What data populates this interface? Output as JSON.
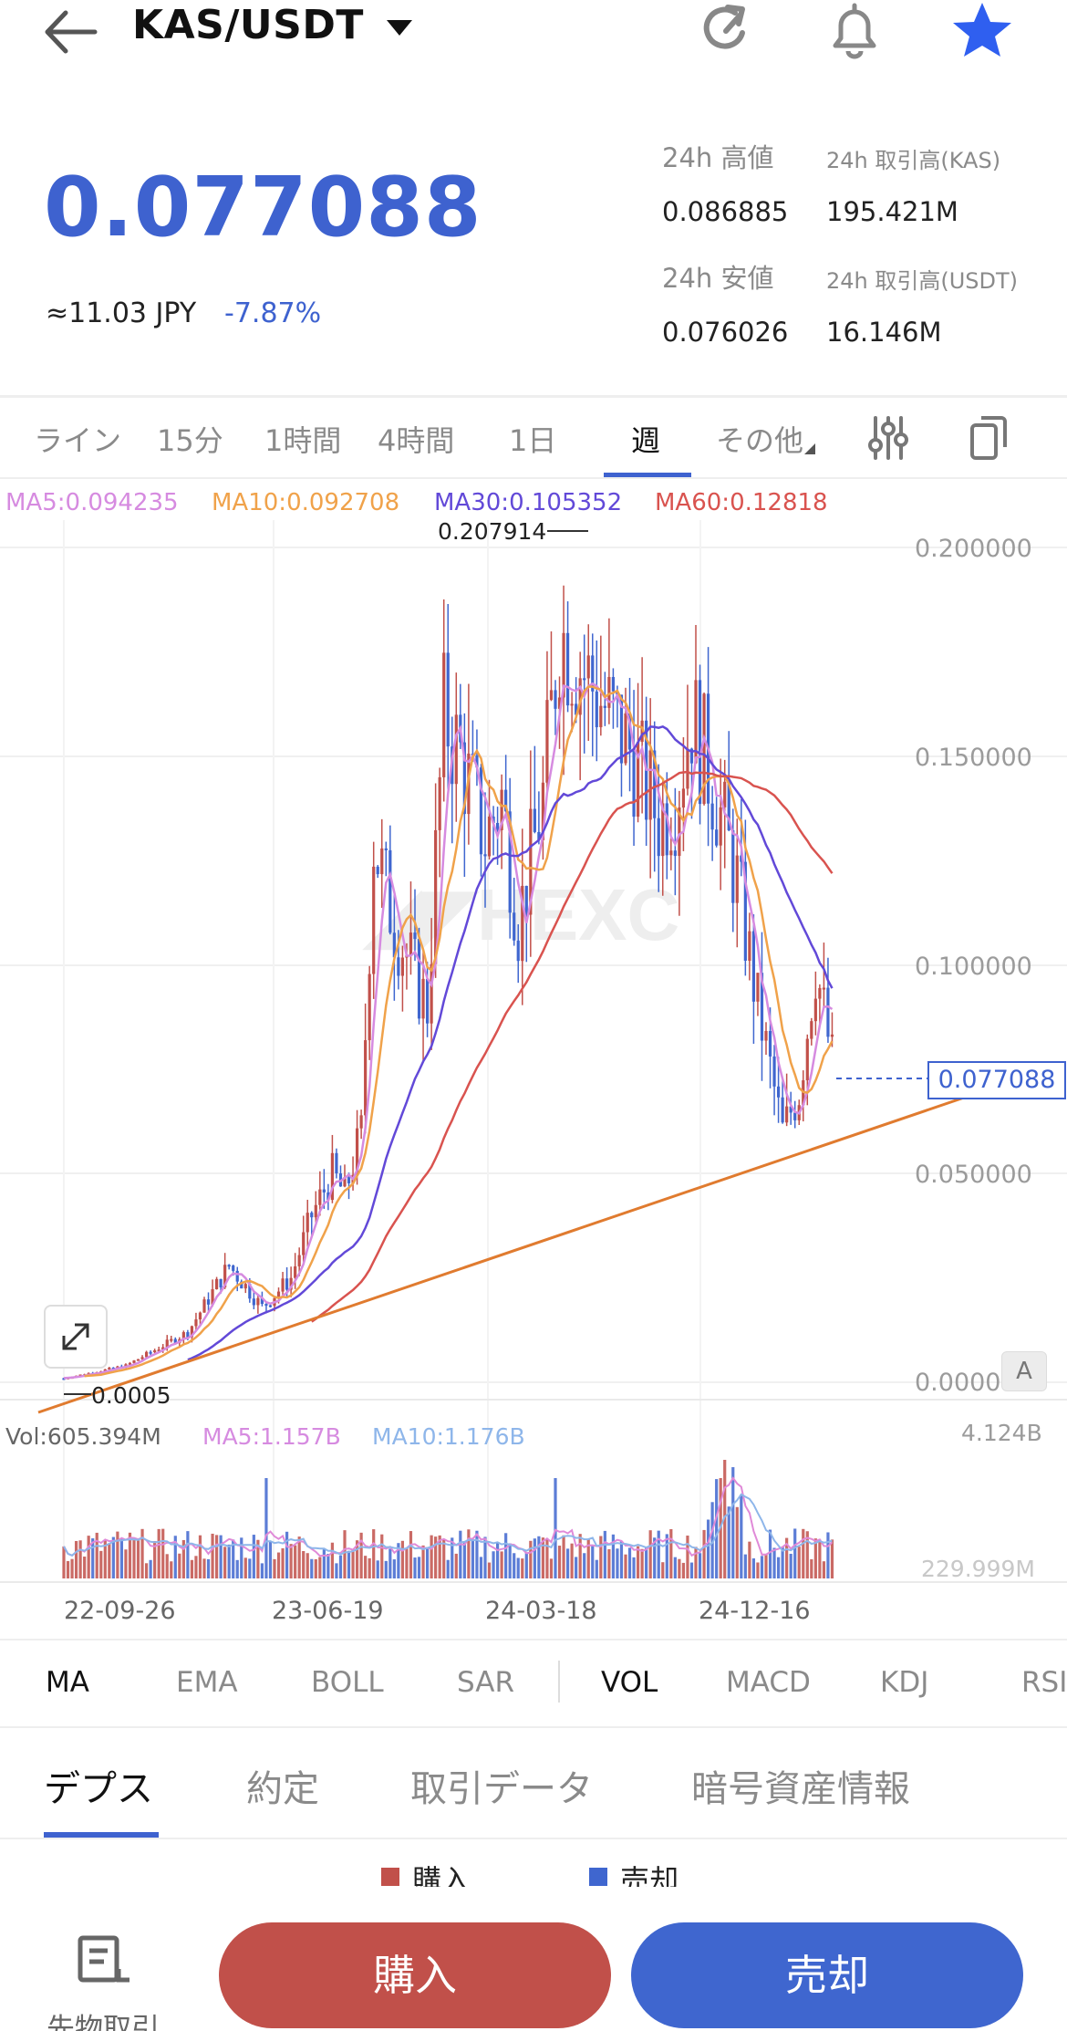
{
  "header": {
    "pair": "KAS/USDT",
    "icons": [
      "back-arrow-icon",
      "dropdown-caret-icon",
      "refresh-icon",
      "bell-icon",
      "star-icon"
    ]
  },
  "ticker": {
    "price": "0.077088",
    "approx": "≈11.03  JPY",
    "change": "-7.87%",
    "high_label": "24h 高値",
    "high_value": "0.086885",
    "low_label": "24h 安値",
    "low_value": "0.076026",
    "vol_kas_label": "24h 取引高(KAS)",
    "vol_kas_value": "195.421M",
    "vol_usdt_label": "24h 取引高(USDT)",
    "vol_usdt_value": "16.146M"
  },
  "timeframes": {
    "items": [
      "ライン",
      "15分",
      "1時間",
      "4時間",
      "1日",
      "週",
      "その他"
    ],
    "active": "週",
    "icons": [
      "indicator-settings-icon",
      "copy-icon"
    ]
  },
  "ma_legend": {
    "ma5": "MA5:0.094235",
    "ma10": "MA10:0.092708",
    "ma30": "MA30:0.105352",
    "ma60": "MA60:0.12818"
  },
  "colors": {
    "accent": "#3e62cf",
    "up": "#c1504a",
    "down": "#3f66cf",
    "ma5": "#d68be0",
    "ma10": "#f0a24a",
    "ma30": "#6249d8",
    "ma60": "#d9534f",
    "trendline": "#e07b2f",
    "vol_ma5": "#e08ad8",
    "vol_ma10": "#8eb6ea"
  },
  "chart_data": {
    "type": "candlestick",
    "interval": "週",
    "y_ticks": [
      "0.200000",
      "0.150000",
      "0.100000",
      "0.050000",
      "0.0000"
    ],
    "x_ticks": [
      "22-09-26",
      "23-06-19",
      "24-03-18",
      "24-12-16"
    ],
    "current_price_label": "0.077088",
    "max_annotation": "0.207914",
    "min_annotation": "0.0005",
    "ylim": [
      0,
      0.21
    ],
    "ma_lines": [
      "MA5",
      "MA10",
      "MA30",
      "MA60"
    ],
    "volume": {
      "legend_vol": "Vol:605.394M",
      "legend_ma5": "MA5:1.157B",
      "legend_ma10": "MA10:1.176B",
      "max_label": "4.124B",
      "min_label": "229.999M"
    }
  },
  "chart_controls": {
    "expand_icon": "expand-icon",
    "auto_label": "A"
  },
  "indicators": {
    "main": [
      "MA",
      "EMA",
      "BOLL",
      "SAR"
    ],
    "sub": [
      "VOL",
      "MACD",
      "KDJ",
      "RSI"
    ],
    "active_main": "MA",
    "active_sub": "VOL"
  },
  "bottom_tabs": {
    "items": [
      "デプス",
      "約定",
      "取引データ",
      "暗号資産情報"
    ],
    "active": "デプス"
  },
  "depth_legend": {
    "buy": "購入",
    "sell": "売却"
  },
  "footer": {
    "futures_label": "先物取引",
    "futures_icon": "futures-icon",
    "buy": "購入",
    "sell": "売却"
  }
}
